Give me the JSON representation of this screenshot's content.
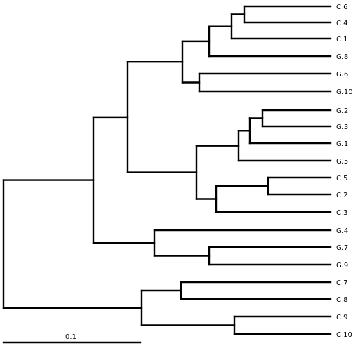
{
  "tree": {
    "leaves": [
      "C.6",
      "C.4",
      "C.1",
      "G.8",
      "G.6",
      "G.10",
      "G.2",
      "G.3",
      "G.1",
      "G.5",
      "C.5",
      "C.2",
      "C.3",
      "G.4",
      "G.7",
      "G.9",
      "C.7",
      "C.8",
      "C.9",
      "C.10"
    ]
  },
  "scale_bar": {
    "label": "0.1"
  },
  "colors": {
    "line": "#000000",
    "background": "#ffffff"
  }
}
